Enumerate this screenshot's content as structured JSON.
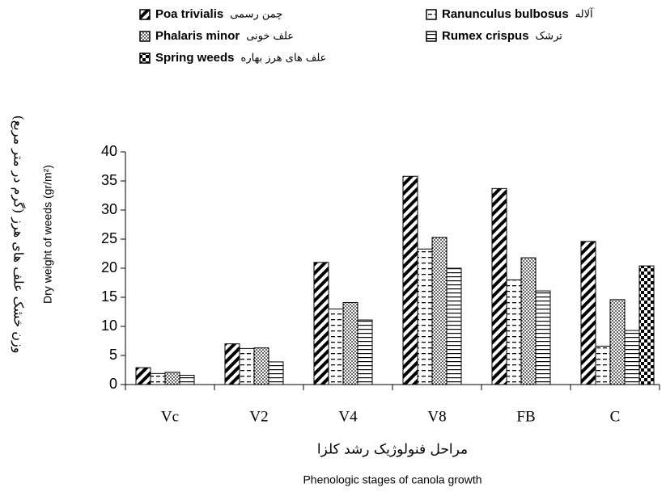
{
  "chart_data": {
    "type": "bar",
    "ylabel": "Dry weight of weeds (gr/m²)",
    "ylabel_fa": "وزن خشک علف های هرز (گرم در متر مربع)",
    "xlabel": "Phenologic stages of canola growth",
    "xlabel_fa": "مراحل فنولوژیک رشد کلزا",
    "categories": [
      "Vc",
      "V2",
      "V4",
      "V8",
      "FB",
      "C"
    ],
    "series": [
      {
        "name": "Poa trivialis",
        "name_fa": "چمن رسمی",
        "color": "#000000",
        "pattern": "diagonal",
        "values": [
          2.9,
          7.0,
          21.0,
          35.8,
          33.7,
          24.6
        ]
      },
      {
        "name": "Ranunculus bulbosus",
        "name_fa": "آلاله",
        "color": "#000000",
        "pattern": "dashed",
        "values": [
          1.9,
          6.2,
          13.0,
          23.3,
          18.0,
          6.6
        ]
      },
      {
        "name": "Phalaris minor",
        "name_fa": "علف خونی",
        "color": "#000000",
        "pattern": "dots",
        "values": [
          2.1,
          6.3,
          14.1,
          25.3,
          21.8,
          14.6
        ]
      },
      {
        "name": "Rumex crispus",
        "name_fa": "ترشک",
        "color": "#000000",
        "pattern": "horizontal",
        "values": [
          1.6,
          3.9,
          11.1,
          20.0,
          16.1,
          9.3
        ]
      },
      {
        "name": "Spring weeds",
        "name_fa": "علف های هرز بهاره",
        "color": "#000000",
        "pattern": "checker",
        "values": [
          null,
          null,
          null,
          null,
          null,
          20.4
        ]
      }
    ],
    "ylim": [
      0,
      40
    ],
    "yticks": [
      0,
      5,
      10,
      15,
      20,
      25,
      30,
      35,
      40
    ],
    "grid": false
  }
}
